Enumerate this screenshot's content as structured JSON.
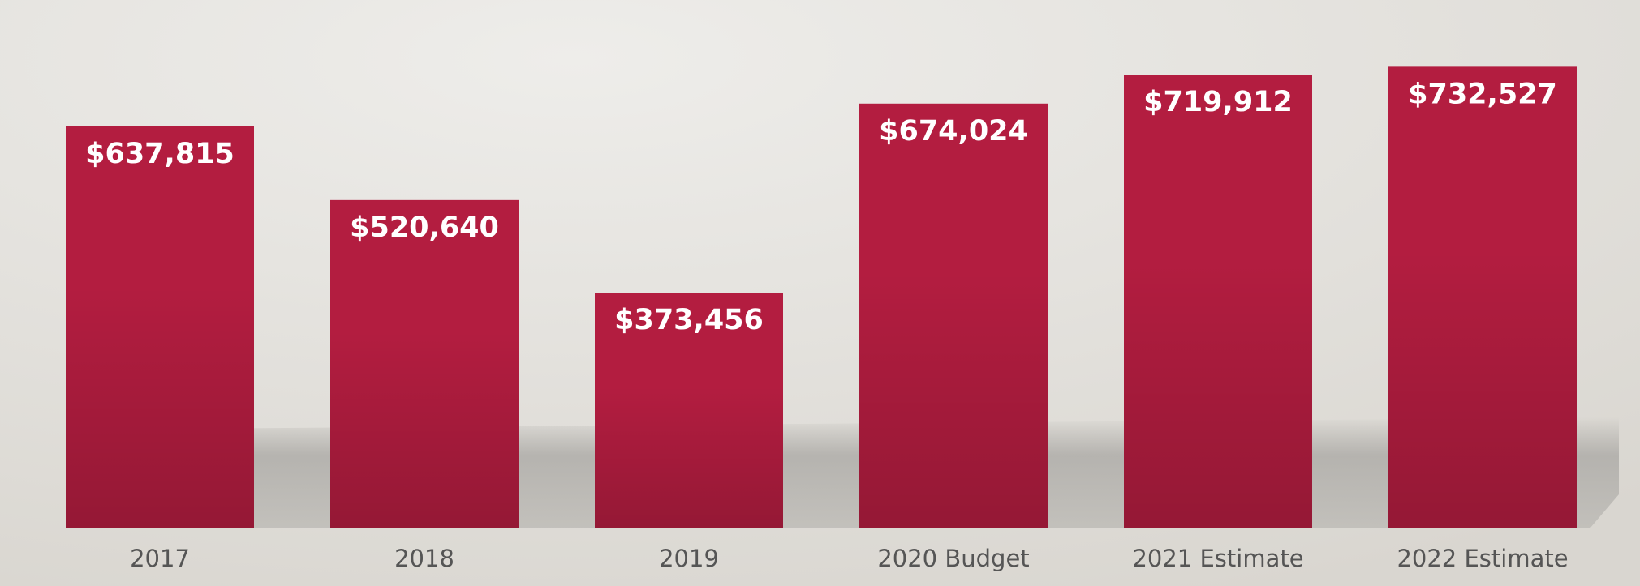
{
  "chart_data": {
    "type": "bar",
    "categories": [
      "2017",
      "2018",
      "2019",
      "2020 Budget",
      "2021 Estimate",
      "2022 Estimate"
    ],
    "values": [
      637815,
      520640,
      373456,
      674024,
      719912,
      732527
    ],
    "value_labels": [
      "$637,815",
      "$520,640",
      "$373,456",
      "$674,024",
      "$719,912",
      "$732,527"
    ],
    "color": "#b31d40",
    "ylim": [
      0,
      800000
    ]
  }
}
